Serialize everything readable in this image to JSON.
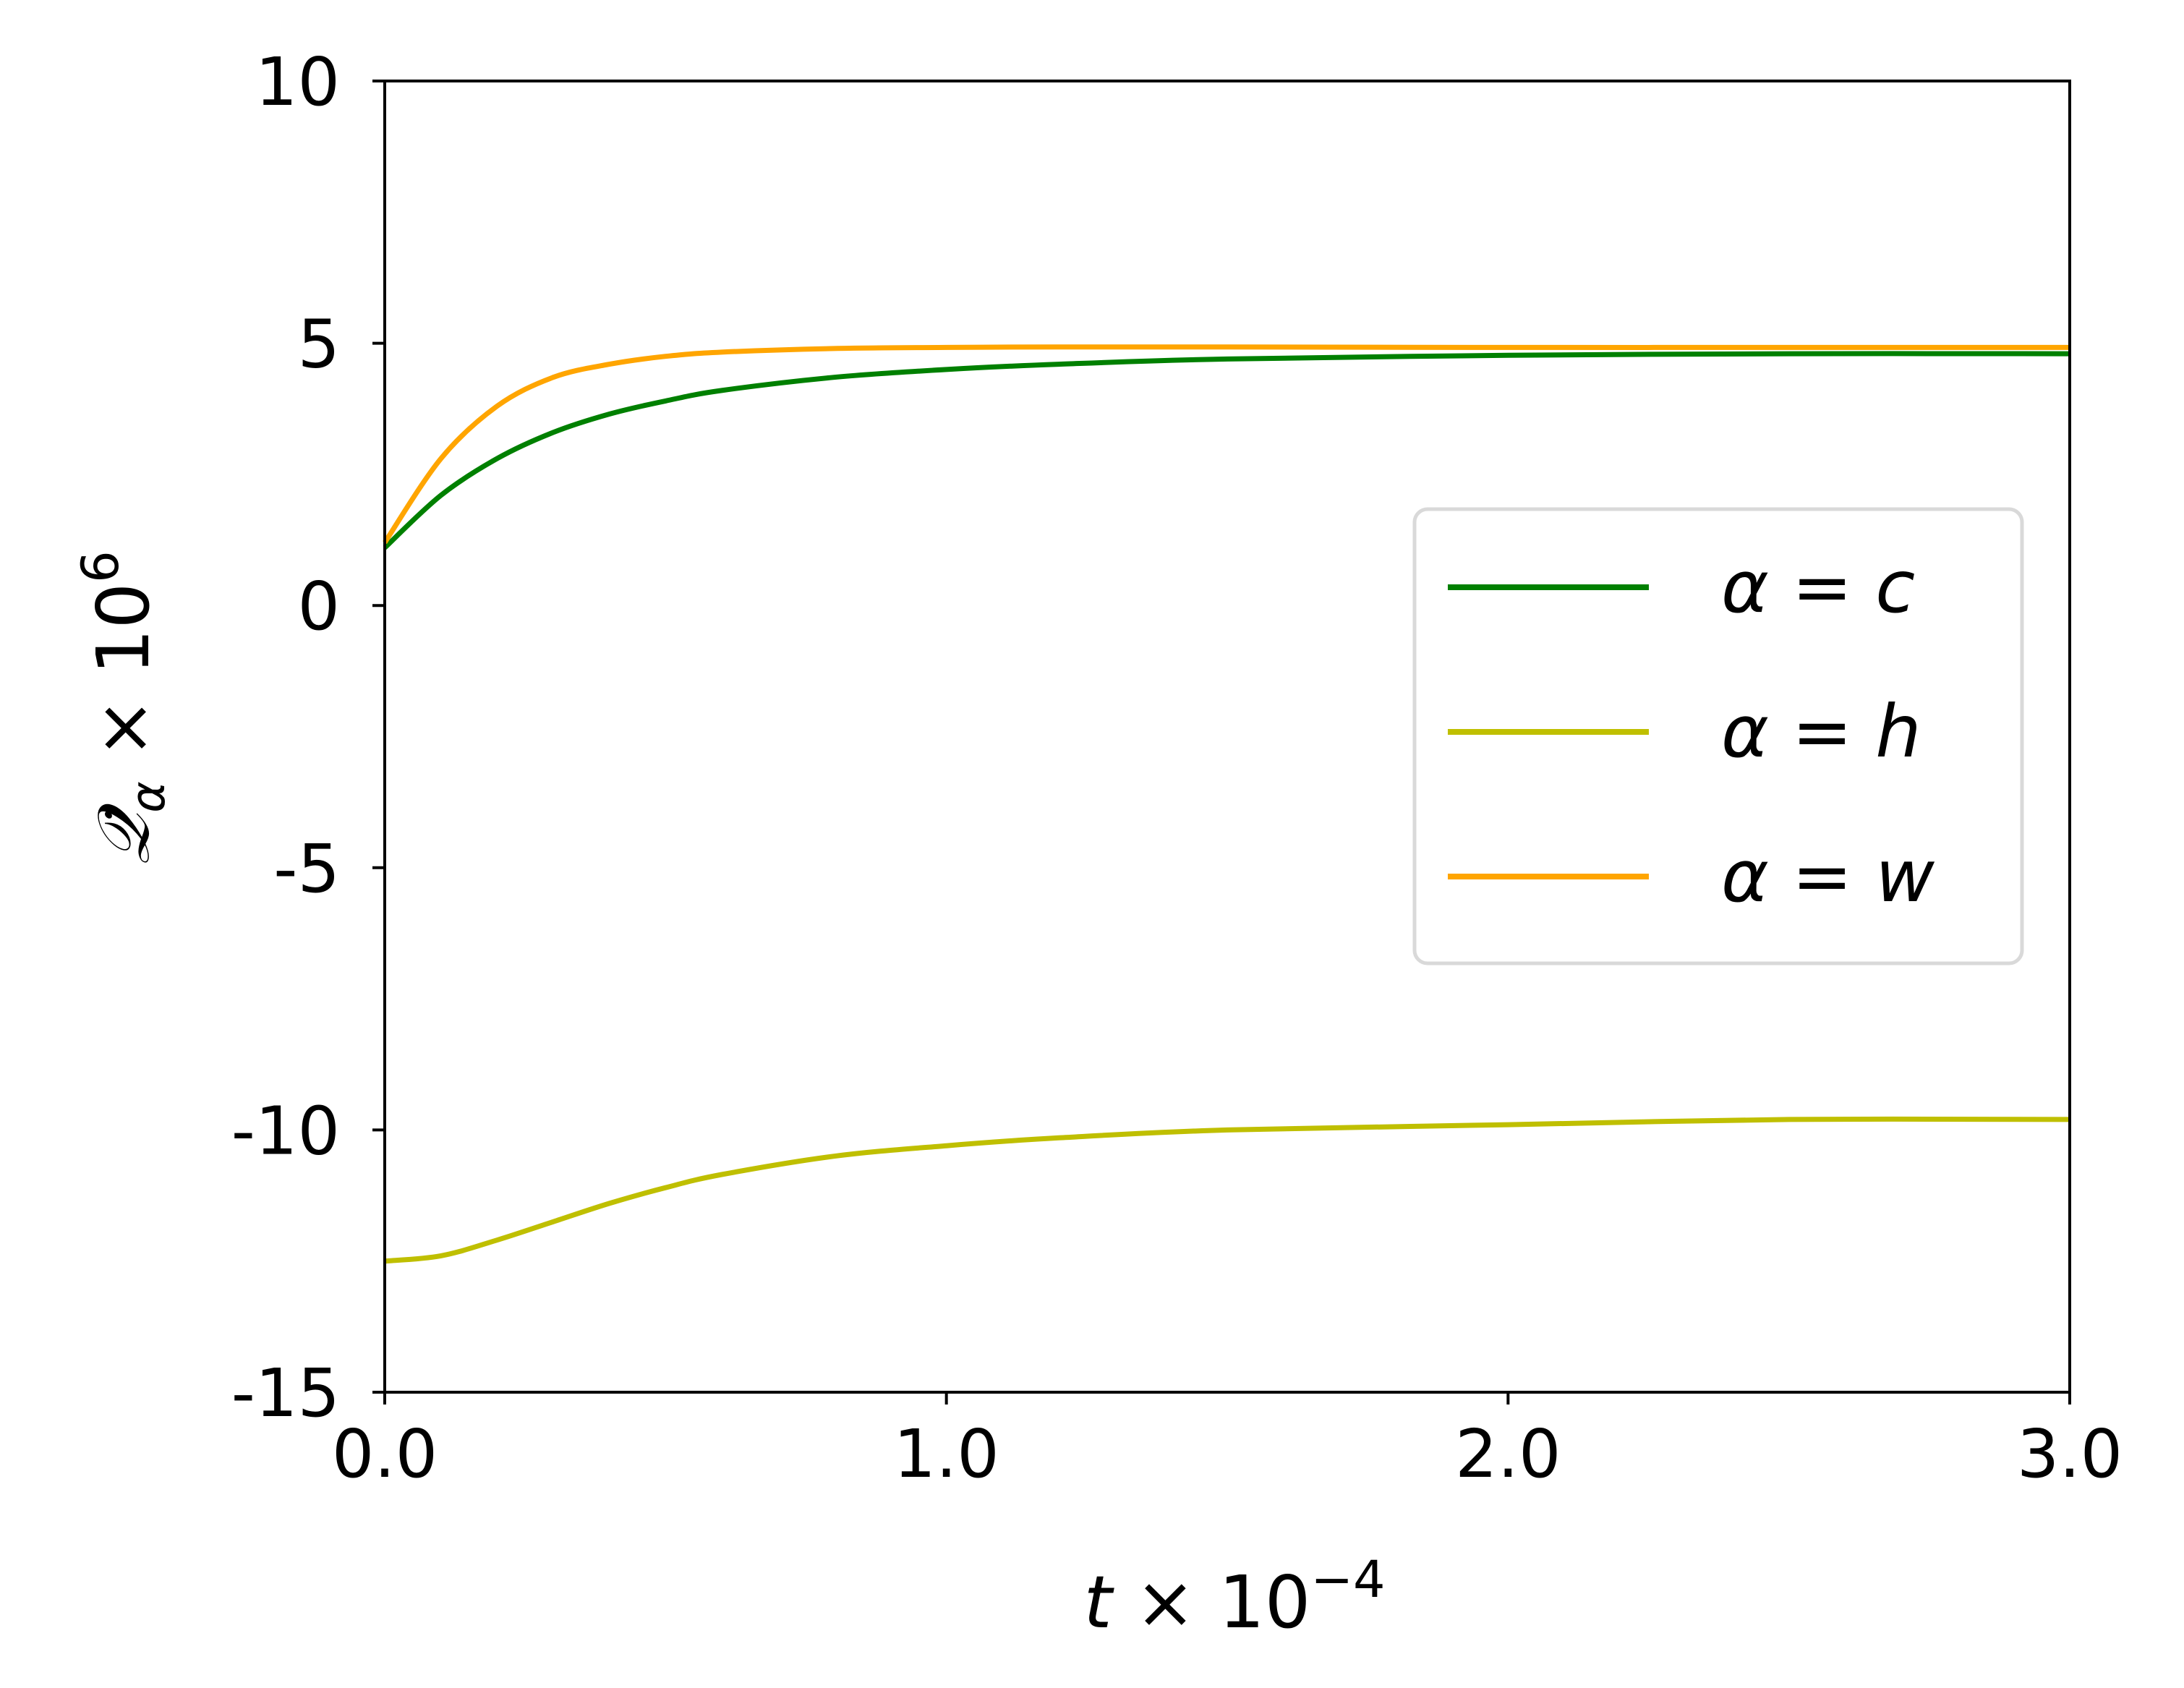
{
  "chart_data": {
    "type": "line",
    "x": [
      0,
      0.1,
      0.2,
      0.3,
      0.4,
      0.5,
      0.6,
      0.8,
      1.0,
      1.2,
      1.5,
      2.0,
      2.5,
      3.0
    ],
    "series": [
      {
        "name": "α = c",
        "color": "#008000",
        "values": [
          1.1,
          2.1,
          2.8,
          3.3,
          3.65,
          3.9,
          4.1,
          4.35,
          4.5,
          4.6,
          4.7,
          4.77,
          4.8,
          4.8
        ]
      },
      {
        "name": "α = h",
        "color": "#bfbf00",
        "values": [
          -12.5,
          -12.4,
          -12.1,
          -11.75,
          -11.4,
          -11.1,
          -10.85,
          -10.5,
          -10.3,
          -10.15,
          -10.0,
          -9.9,
          -9.8,
          -9.8
        ]
      },
      {
        "name": "α = w",
        "color": "#ffa500",
        "values": [
          1.2,
          2.8,
          3.8,
          4.35,
          4.6,
          4.75,
          4.83,
          4.9,
          4.92,
          4.93,
          4.93,
          4.92,
          4.92,
          4.92
        ]
      }
    ],
    "xlabel": {
      "base": "t",
      "times": " × 10",
      "exp": "−4"
    },
    "ylabel": {
      "base": "𝒬̇",
      "sub": "α",
      "times": " × 10",
      "exp": "6"
    },
    "xlim": [
      0,
      3.0
    ],
    "ylim": [
      -15,
      10
    ],
    "xticks": [
      "0.0",
      "1.0",
      "2.0",
      "3.0"
    ],
    "yticks": [
      "10",
      "5",
      "0",
      "-5",
      "-10",
      "-15"
    ],
    "grid": false,
    "legend_position": "center-right"
  }
}
